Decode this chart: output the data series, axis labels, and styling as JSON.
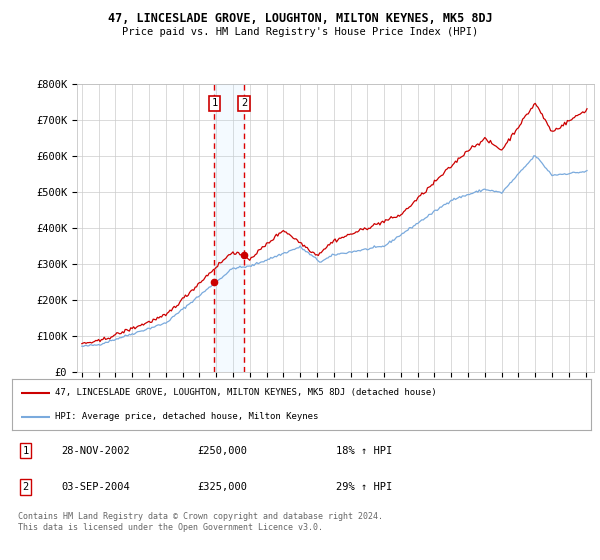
{
  "title": "47, LINCESLADE GROVE, LOUGHTON, MILTON KEYNES, MK5 8DJ",
  "subtitle": "Price paid vs. HM Land Registry's House Price Index (HPI)",
  "sale1_price": 250000,
  "sale1_pct": "18% ↑ HPI",
  "sale1_date_str": "28-NOV-2002",
  "sale2_price": 325000,
  "sale2_pct": "29% ↑ HPI",
  "sale2_date_str": "03-SEP-2004",
  "legend_line1": "47, LINCESLADE GROVE, LOUGHTON, MILTON KEYNES, MK5 8DJ (detached house)",
  "legend_line2": "HPI: Average price, detached house, Milton Keynes",
  "footer": "Contains HM Land Registry data © Crown copyright and database right 2024.\nThis data is licensed under the Open Government Licence v3.0.",
  "line1_color": "#cc0000",
  "line2_color": "#7aaadd",
  "background_color": "#ffffff",
  "grid_color": "#cccccc",
  "ylim": [
    0,
    800000
  ],
  "yticks": [
    0,
    100000,
    200000,
    300000,
    400000,
    500000,
    600000,
    700000,
    800000
  ],
  "xlim_start": 1994.7,
  "xlim_end": 2025.5,
  "sale1_x": 2002.9,
  "sale2_x": 2004.67
}
